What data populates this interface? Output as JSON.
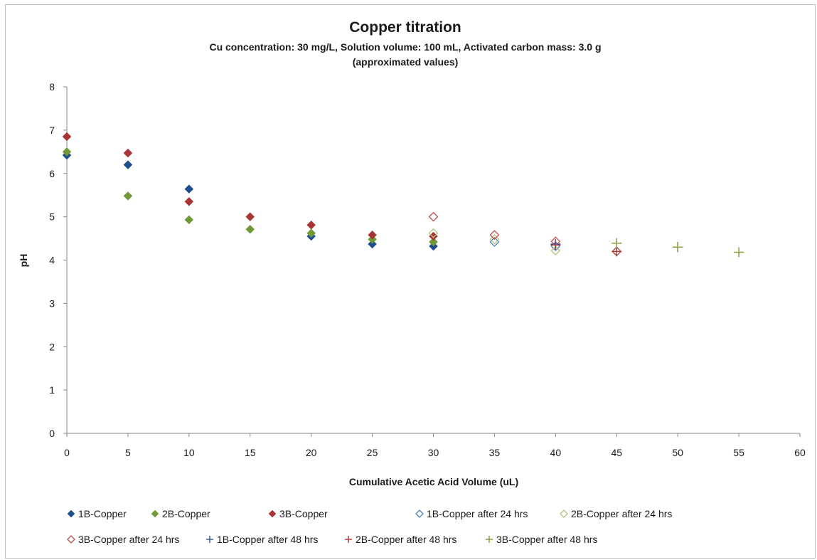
{
  "chart_data": {
    "type": "scatter",
    "title": "Copper titration",
    "subtitle_lines": [
      "Cu concentration: 30 mg/L, Solution volume: 100 mL, Activated carbon mass: 3.0 g",
      "(approximated values)"
    ],
    "xlabel": "Cumulative Acetic Acid Volume (uL)",
    "ylabel": "pH",
    "xlim": [
      0,
      60
    ],
    "ylim": [
      0,
      8
    ],
    "xticks": [
      0,
      5,
      10,
      15,
      20,
      25,
      30,
      35,
      40,
      45,
      50,
      55,
      60
    ],
    "yticks": [
      0,
      1,
      2,
      3,
      4,
      5,
      6,
      7,
      8
    ],
    "grid": false,
    "legend_position": "bottom",
    "series": [
      {
        "name": "1B-Copper",
        "marker": "diamond-filled",
        "color": "#1f4e8c",
        "points": [
          [
            0,
            6.42
          ],
          [
            5,
            6.2
          ],
          [
            10,
            5.64
          ],
          [
            20,
            4.55
          ],
          [
            25,
            4.37
          ],
          [
            30,
            4.32
          ]
        ]
      },
      {
        "name": "2B-Copper",
        "marker": "diamond-filled",
        "color": "#6f9a37",
        "points": [
          [
            0,
            6.5
          ],
          [
            5,
            5.48
          ],
          [
            10,
            4.93
          ],
          [
            15,
            4.71
          ],
          [
            20,
            4.62
          ],
          [
            25,
            4.48
          ],
          [
            30,
            4.42
          ]
        ]
      },
      {
        "name": "3B-Copper",
        "marker": "diamond-filled",
        "color": "#a83434",
        "points": [
          [
            0,
            6.85
          ],
          [
            5,
            6.47
          ],
          [
            10,
            5.35
          ],
          [
            15,
            5.0
          ],
          [
            20,
            4.81
          ],
          [
            25,
            4.58
          ],
          [
            30,
            4.55
          ]
        ]
      },
      {
        "name": "1B-Copper after 24 hrs",
        "marker": "diamond-open",
        "color": "#4f81bd",
        "points": [
          [
            35,
            4.42
          ],
          [
            40,
            4.32
          ],
          [
            45,
            4.2
          ]
        ]
      },
      {
        "name": "2B-Copper after 24 hrs",
        "marker": "diamond-open",
        "color": "#b4c47e",
        "points": [
          [
            30,
            4.62
          ],
          [
            35,
            4.48
          ],
          [
            40,
            4.22
          ],
          [
            45,
            4.2
          ]
        ]
      },
      {
        "name": "3B-Copper after 24 hrs",
        "marker": "diamond-open",
        "color": "#c0504d",
        "points": [
          [
            30,
            5.0
          ],
          [
            35,
            4.58
          ],
          [
            40,
            4.43
          ],
          [
            45,
            4.2
          ]
        ]
      },
      {
        "name": "1B-Copper after 48 hrs",
        "marker": "plus",
        "color": "#3a5fa0",
        "points": [
          [
            40,
            4.37
          ],
          [
            50,
            4.3
          ]
        ]
      },
      {
        "name": "2B-Copper after 48 hrs",
        "marker": "plus",
        "color": "#b03a3a",
        "points": [
          [
            40,
            4.35
          ],
          [
            45,
            4.2
          ]
        ]
      },
      {
        "name": "3B-Copper after 48 hrs",
        "marker": "plus",
        "color": "#8c9a3a",
        "points": [
          [
            45,
            4.39
          ],
          [
            50,
            4.3
          ],
          [
            55,
            4.18
          ]
        ]
      }
    ]
  }
}
